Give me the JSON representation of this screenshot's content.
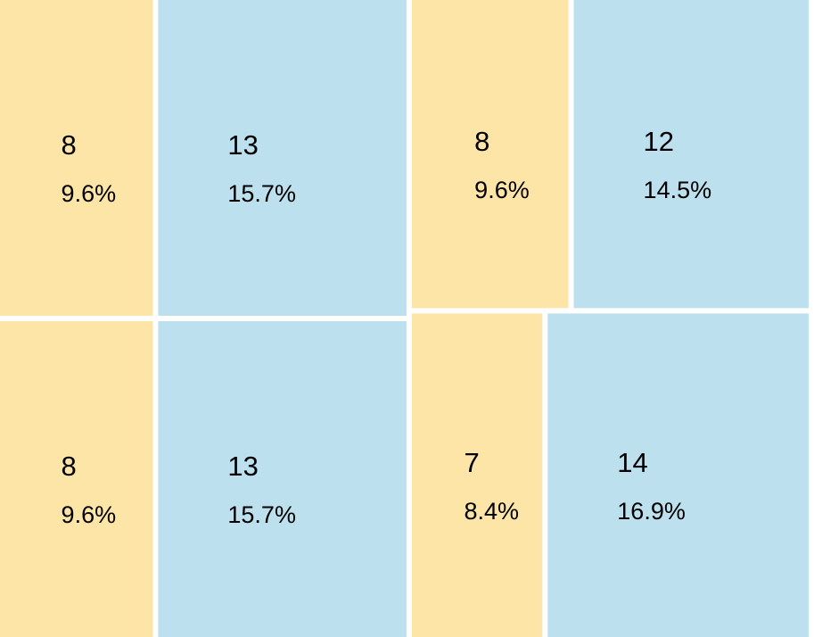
{
  "chart_data": {
    "type": "treemap",
    "values": [
      8,
      13,
      8,
      12,
      8,
      13,
      7,
      14
    ],
    "shares": [
      9.6,
      15.7,
      9.6,
      14.5,
      9.6,
      15.7,
      8.4,
      16.9
    ],
    "share_labels": [
      "9.6%",
      "15.7%",
      "9.6%",
      "14.5%",
      "9.6%",
      "15.7%",
      "8.4%",
      "16.9%"
    ],
    "colors": [
      "#fde4a7",
      "#bde0ef"
    ]
  }
}
